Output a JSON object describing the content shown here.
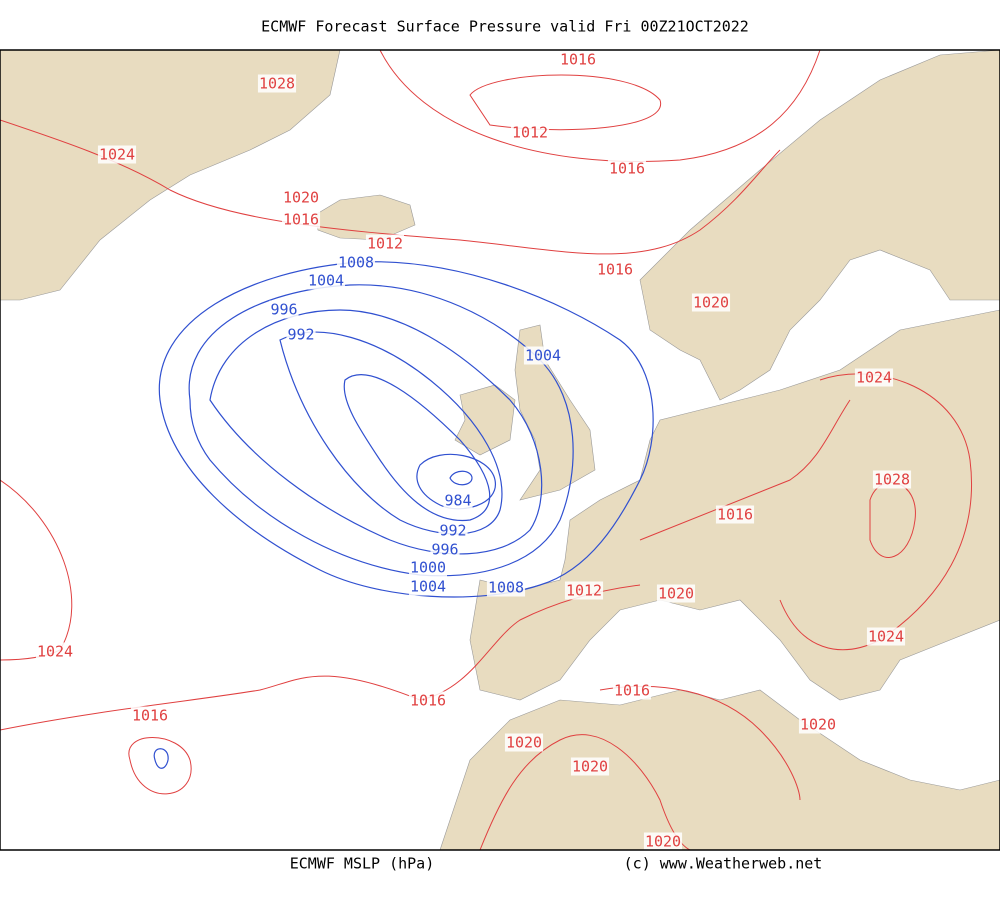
{
  "header": {
    "title": "ECMWF Forecast Surface Pressure valid Fri 00Z21OCT2022"
  },
  "footer": {
    "left": "ECMWF MSLP (hPa)",
    "right": "(c) www.Weatherweb.net"
  },
  "map": {
    "red_isobar_labels": [
      "1016",
      "1028",
      "1012",
      "1024",
      "1016",
      "1020",
      "1016",
      "1012",
      "1016",
      "1020",
      "1024",
      "1028",
      "1016",
      "1012",
      "1020",
      "1024",
      "1024",
      "1016",
      "1016",
      "1016",
      "1020",
      "1020",
      "1020",
      "1020"
    ],
    "blue_isobar_labels": [
      "1008",
      "1004",
      "996",
      "992",
      "1004",
      "984",
      "992",
      "996",
      "1000",
      "1004",
      "1008"
    ]
  }
}
